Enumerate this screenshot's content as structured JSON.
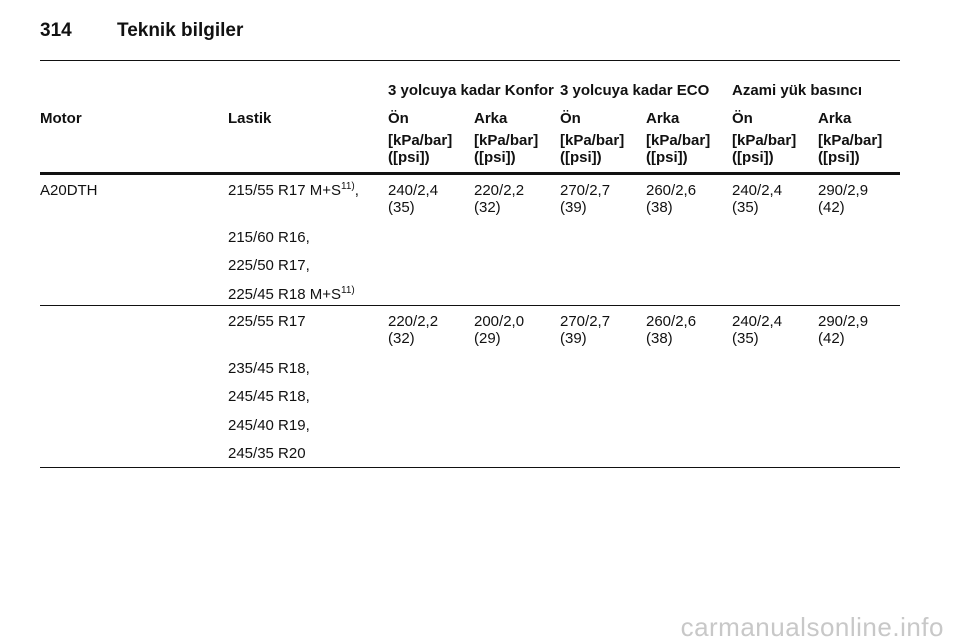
{
  "header": {
    "page_number": "314",
    "title": "Teknik bilgiler"
  },
  "table": {
    "group_headers": [
      "3 yolcuya kadar Konfor",
      "3 yolcuya kadar ECO",
      "Azami yük basıncı"
    ],
    "column_headers": [
      "Motor",
      "Lastik",
      "Ön",
      "Arka",
      "Ön",
      "Arka",
      "Ön",
      "Arka"
    ],
    "units": [
      {
        "unit": "[kPa/bar]",
        "psi": "([psi])"
      },
      {
        "unit": "[kPa/bar]",
        "psi": "([psi])"
      },
      {
        "unit": "[kPa/bar]",
        "psi": "([psi])"
      },
      {
        "unit": "[kPa/bar]",
        "psi": "([psi])"
      },
      {
        "unit": "[kPa/bar]",
        "psi": "([psi])"
      },
      {
        "unit": "[kPa/bar]",
        "psi": "([psi])"
      }
    ],
    "engine": "A20DTH",
    "groups": [
      {
        "tyres": [
          {
            "text": "215/55 R17 M+S",
            "note": "11)",
            "suffix": ","
          },
          {
            "text": "215/60 R16,"
          },
          {
            "text": "225/50 R17,"
          },
          {
            "text": "225/45 R18 M+S",
            "note": "11)"
          }
        ],
        "pressures": [
          {
            "bar": "240/2,4",
            "psi": "(35)"
          },
          {
            "bar": "220/2,2",
            "psi": "(32)"
          },
          {
            "bar": "270/2,7",
            "psi": "(39)"
          },
          {
            "bar": "260/2,6",
            "psi": "(38)"
          },
          {
            "bar": "240/2,4",
            "psi": "(35)"
          },
          {
            "bar": "290/2,9",
            "psi": "(42)"
          }
        ]
      },
      {
        "tyres": [
          {
            "text": "225/55 R17"
          },
          {
            "text": "235/45 R18,"
          },
          {
            "text": "245/45 R18,"
          },
          {
            "text": "245/40 R19,"
          },
          {
            "text": "245/35 R20"
          }
        ],
        "pressures": [
          {
            "bar": "220/2,2",
            "psi": "(32)"
          },
          {
            "bar": "200/2,0",
            "psi": "(29)"
          },
          {
            "bar": "270/2,7",
            "psi": "(39)"
          },
          {
            "bar": "260/2,6",
            "psi": "(38)"
          },
          {
            "bar": "240/2,4",
            "psi": "(35)"
          },
          {
            "bar": "290/2,9",
            "psi": "(42)"
          }
        ]
      }
    ]
  },
  "watermark": "carmanualsonline.info"
}
